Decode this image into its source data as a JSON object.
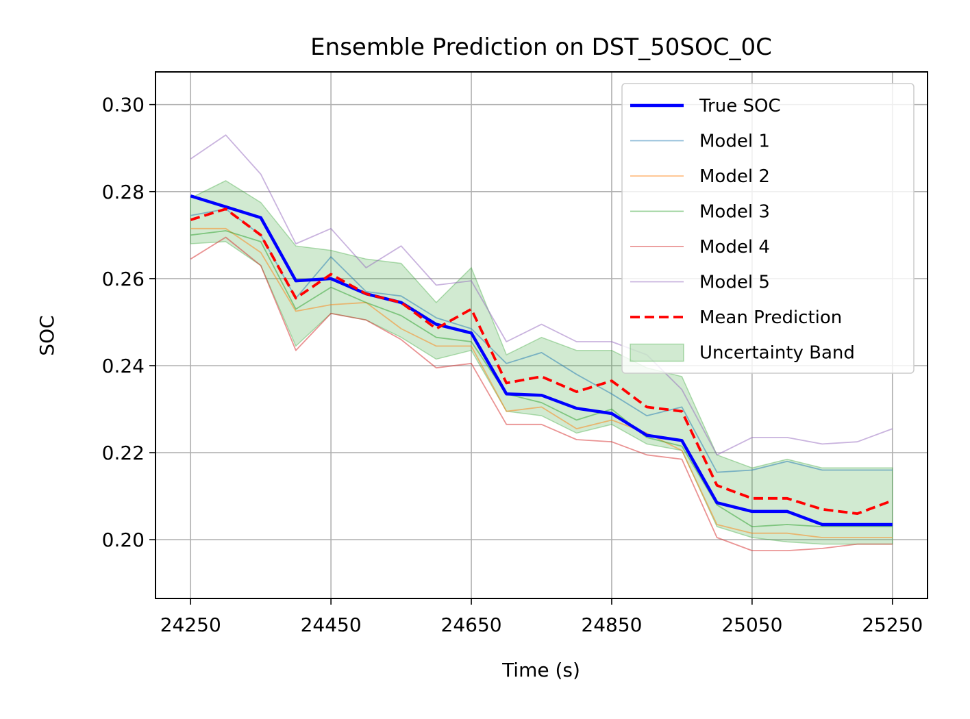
{
  "chart_data": {
    "type": "line",
    "title": "Ensemble Prediction on DST_50SOC_0C",
    "xlabel": "Time (s)",
    "ylabel": "SOC",
    "xlim": [
      24200,
      25300
    ],
    "ylim": [
      0.1865,
      0.3075
    ],
    "xticks": [
      24250,
      24450,
      24650,
      24850,
      25050,
      25250
    ],
    "yticks": [
      0.2,
      0.22,
      0.24,
      0.26,
      0.28,
      0.3
    ],
    "xtick_labels": [
      "24250",
      "24450",
      "24650",
      "24850",
      "25050",
      "25250"
    ],
    "ytick_labels": [
      "0.20",
      "0.22",
      "0.24",
      "0.26",
      "0.28",
      "0.30"
    ],
    "grid": true,
    "legend_position": "top-right",
    "x": [
      24250,
      24300,
      24350,
      24400,
      24450,
      24500,
      24550,
      24600,
      24650,
      24700,
      24750,
      24800,
      24850,
      24900,
      24950,
      25000,
      25050,
      25100,
      25150,
      25200,
      25250
    ],
    "series": [
      {
        "name": "True SOC",
        "color": "#0000ff",
        "style": "solid-thick",
        "values": [
          0.279,
          0.2765,
          0.274,
          0.2595,
          0.26,
          0.2565,
          0.2545,
          0.2495,
          0.2475,
          0.2335,
          0.2332,
          0.2302,
          0.229,
          0.224,
          0.2228,
          0.2085,
          0.2065,
          0.2065,
          0.2035,
          0.2035,
          0.2035
        ]
      },
      {
        "name": "Model 1",
        "color": "#1f77b4",
        "style": "thin",
        "values": [
          0.2745,
          0.276,
          0.27,
          0.2555,
          0.265,
          0.257,
          0.256,
          0.251,
          0.2485,
          0.2405,
          0.243,
          0.238,
          0.2335,
          0.2285,
          0.2305,
          0.2155,
          0.216,
          0.218,
          0.216,
          0.216,
          0.216
        ]
      },
      {
        "name": "Model 2",
        "color": "#ff7f0e",
        "style": "thin",
        "values": [
          0.2715,
          0.2715,
          0.266,
          0.2525,
          0.254,
          0.2545,
          0.2485,
          0.2445,
          0.2445,
          0.2295,
          0.2305,
          0.2255,
          0.2275,
          0.2245,
          0.2205,
          0.2035,
          0.2015,
          0.2015,
          0.2005,
          0.2005,
          0.2005
        ]
      },
      {
        "name": "Model 3",
        "color": "#2ca02c",
        "style": "thin",
        "values": [
          0.27,
          0.271,
          0.2685,
          0.253,
          0.258,
          0.2545,
          0.2515,
          0.2465,
          0.2455,
          0.2335,
          0.2315,
          0.2275,
          0.23,
          0.2235,
          0.2215,
          0.208,
          0.203,
          0.2035,
          0.203,
          0.203,
          0.203
        ]
      },
      {
        "name": "Model 4",
        "color": "#d62728",
        "style": "thin",
        "values": [
          0.2645,
          0.2695,
          0.263,
          0.2435,
          0.252,
          0.2505,
          0.246,
          0.2395,
          0.2405,
          0.2265,
          0.2265,
          0.223,
          0.2225,
          0.2195,
          0.2185,
          0.2005,
          0.1975,
          0.1975,
          0.198,
          0.199,
          0.199
        ]
      },
      {
        "name": "Model 5",
        "color": "#9467bd",
        "style": "thin",
        "values": [
          0.2875,
          0.293,
          0.284,
          0.268,
          0.2715,
          0.2625,
          0.2675,
          0.2585,
          0.2595,
          0.2455,
          0.2495,
          0.2455,
          0.2455,
          0.2425,
          0.2345,
          0.2195,
          0.2235,
          0.2235,
          0.222,
          0.2225,
          0.2255
        ]
      },
      {
        "name": "Mean Prediction",
        "color": "#ff0000",
        "style": "dashed",
        "values": [
          0.2735,
          0.276,
          0.27,
          0.2555,
          0.261,
          0.2565,
          0.2545,
          0.2485,
          0.253,
          0.236,
          0.2375,
          0.234,
          0.2365,
          0.2305,
          0.2295,
          0.2125,
          0.2095,
          0.2095,
          0.207,
          0.206,
          0.209
        ]
      }
    ],
    "band": {
      "name": "Uncertainty Band",
      "color": "#2ca02c",
      "lower": [
        0.268,
        0.2685,
        0.263,
        0.2445,
        0.252,
        0.2505,
        0.2465,
        0.2415,
        0.2435,
        0.2295,
        0.2285,
        0.2245,
        0.2265,
        0.222,
        0.2205,
        0.203,
        0.2005,
        0.1995,
        0.199,
        0.199,
        0.199
      ],
      "upper": [
        0.2785,
        0.2825,
        0.2775,
        0.2675,
        0.2665,
        0.2645,
        0.2635,
        0.2545,
        0.2625,
        0.2425,
        0.2465,
        0.2435,
        0.2435,
        0.2395,
        0.2375,
        0.2195,
        0.2165,
        0.2185,
        0.2165,
        0.2165,
        0.2165
      ]
    }
  }
}
